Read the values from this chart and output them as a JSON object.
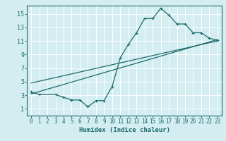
{
  "xlabel": "Humidex (Indice chaleur)",
  "bg_color": "#d4edf0",
  "line_color": "#1a6b6b",
  "grid_color": "#ffffff",
  "xlim": [
    -0.5,
    23.5
  ],
  "ylim": [
    0.0,
    16.2
  ],
  "xticks": [
    0,
    1,
    2,
    3,
    4,
    5,
    6,
    7,
    8,
    9,
    10,
    11,
    12,
    13,
    14,
    15,
    16,
    17,
    18,
    19,
    20,
    21,
    22,
    23
  ],
  "yticks": [
    1,
    3,
    5,
    7,
    9,
    11,
    13,
    15
  ],
  "curve1_x": [
    0,
    1,
    3,
    4,
    5,
    6,
    7,
    8,
    9,
    10,
    11,
    12,
    13,
    14,
    15,
    16,
    17,
    18,
    19,
    20,
    21,
    22,
    23
  ],
  "curve1_y": [
    3.5,
    3.1,
    3.1,
    2.7,
    2.3,
    2.3,
    1.3,
    2.2,
    2.2,
    4.3,
    8.5,
    10.5,
    12.2,
    14.3,
    14.3,
    15.8,
    14.8,
    13.5,
    13.5,
    12.2,
    12.2,
    11.4,
    11.1
  ],
  "line2_x": [
    0,
    23
  ],
  "line2_y": [
    3.2,
    11.2
  ],
  "line3_x": [
    0,
    23
  ],
  "line3_y": [
    4.8,
    11.0
  ]
}
